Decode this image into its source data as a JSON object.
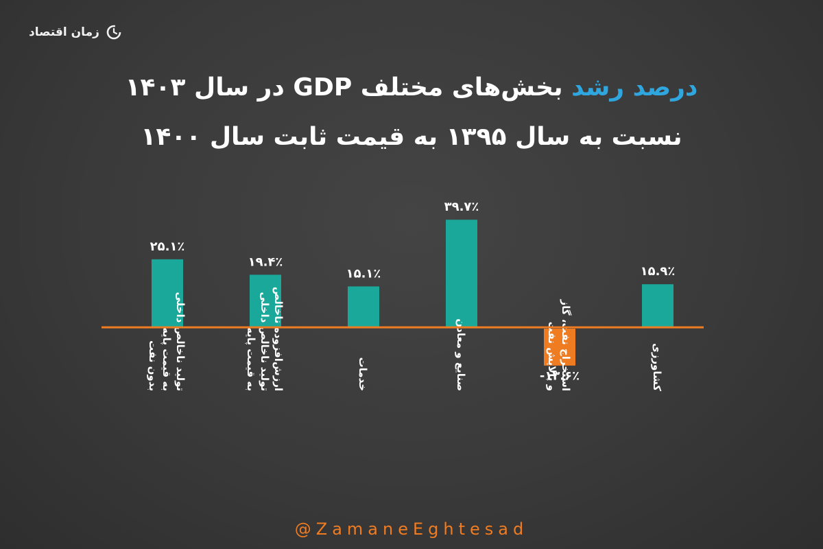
{
  "brand": {
    "name": "زمان اقتصاد",
    "icon": "clock-logo-icon"
  },
  "title": {
    "highlight": "درصد رشد",
    "line1_rest": " بخش‌های مختلف GDP در سال ۱۴۰۳",
    "line2": "نسبت به سال ۱۳۹۵ به قیمت ثابت سال ۱۴۰۰"
  },
  "footer": {
    "handle": "@ZamaneEghtesad"
  },
  "colors": {
    "positive": "#1aa89a",
    "negative": "#f07c22",
    "baseline": "#f07c22",
    "background": "#3a3a3a",
    "highlight": "#2fa6de"
  },
  "chart_data": {
    "type": "bar",
    "categories": [
      "تولید ناخالص داخلی به قیمت پایه بدون نفت",
      "ارزش‌افزوده ناخالص تولید ناخالص داخلی به قیمت پایه",
      "خدمات",
      "صنایع و معادن",
      "استخراج نفت، گاز و پالایش نفت",
      "کشاورزی"
    ],
    "category_lines": [
      [
        "تولید ناخالص داخلی",
        "به قیمت پایه",
        "بدون نفت"
      ],
      [
        "ارزش‌افزوده ناخالص",
        "تولید ناخالص داخلی",
        "به قیمت پایه"
      ],
      [
        "خدمات"
      ],
      [
        "صنایع و معادن"
      ],
      [
        "استخراج نفت، گاز",
        "و پالایش نفت"
      ],
      [
        "کشاورزی"
      ]
    ],
    "values": [
      25.1,
      19.4,
      15.1,
      39.7,
      -13.6,
      15.9
    ],
    "data_labels": [
      "۲۵.۱٪",
      "۱۹.۴٪",
      "۱۵.۱٪",
      "۳۹.۷٪",
      "-۱۳.۶٪",
      "۱۵.۹٪"
    ],
    "title": "",
    "xlabel": "",
    "ylabel": "",
    "ylim": [
      -15,
      40
    ],
    "grid": false,
    "legend": "none"
  }
}
